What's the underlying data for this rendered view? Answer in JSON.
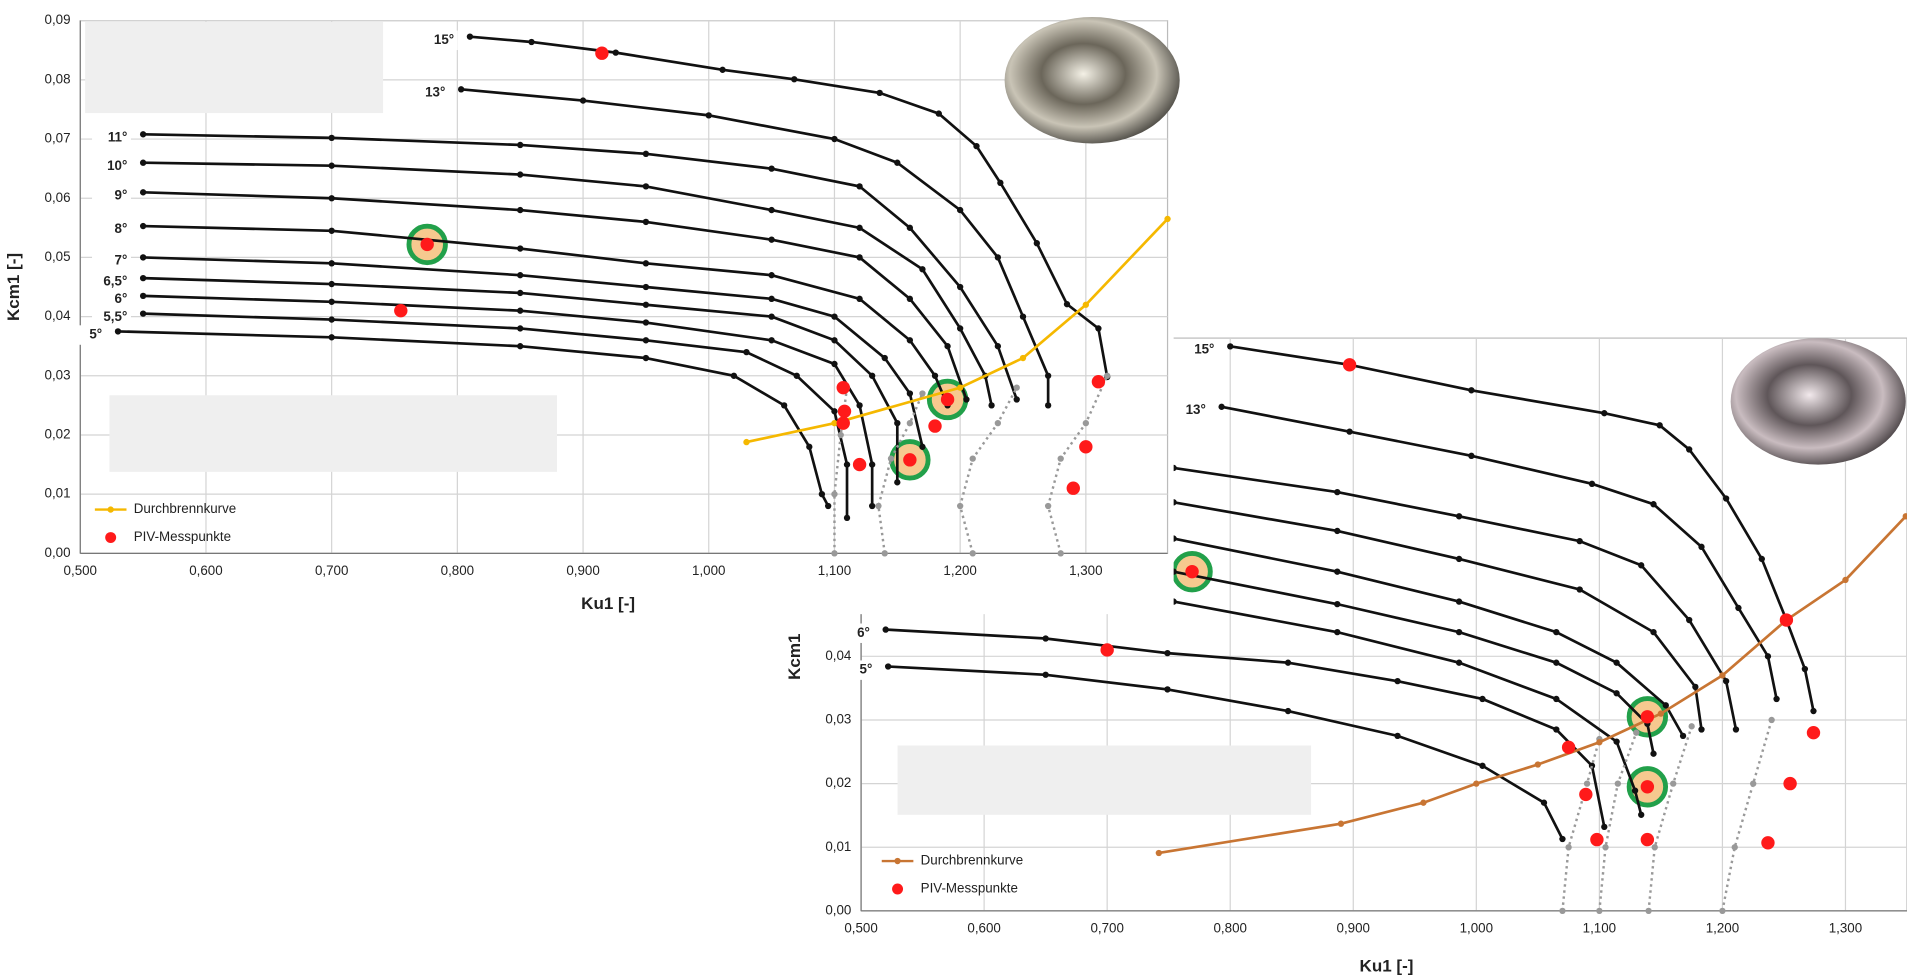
{
  "chart_data": [
    {
      "type": "line",
      "x_label": "Ku1 [-]",
      "y_label": "Kcm1 [-]",
      "xlim": [
        0.5,
        1.365
      ],
      "ylim": [
        0,
        0.09
      ],
      "grid": true,
      "xticks": [
        {
          "value": 0.5,
          "label": "0,500"
        },
        {
          "value": 0.6,
          "label": "0,600"
        },
        {
          "value": 0.7,
          "label": "0,700"
        },
        {
          "value": 0.8,
          "label": "0,800"
        },
        {
          "value": 0.9,
          "label": "0,900"
        },
        {
          "value": 1.0,
          "label": "1,000"
        },
        {
          "value": 1.1,
          "label": "1,100"
        },
        {
          "value": 1.2,
          "label": "1,200"
        },
        {
          "value": 1.3,
          "label": "1,300"
        }
      ],
      "yticks": [
        {
          "value": 0,
          "label": "0,00"
        },
        {
          "value": 0.01,
          "label": "0,01"
        },
        {
          "value": 0.02,
          "label": "0,02"
        },
        {
          "value": 0.03,
          "label": "0,03"
        },
        {
          "value": 0.04,
          "label": "0,04"
        },
        {
          "value": 0.05,
          "label": "0,05"
        },
        {
          "value": 0.06,
          "label": "0,06"
        },
        {
          "value": 0.07,
          "label": "0,07"
        },
        {
          "value": 0.08,
          "label": "0,08"
        },
        {
          "value": 0.09,
          "label": "0,09"
        }
      ],
      "series": [
        {
          "name": "15°",
          "style": "line",
          "color": "#111111",
          "x": [
            0.81,
            0.859,
            0.926,
            1.011,
            1.068,
            1.136,
            1.183,
            1.213,
            1.232,
            1.261,
            1.285,
            1.31,
            1.317
          ],
          "values": [
            0.0873,
            0.0864,
            0.0846,
            0.0817,
            0.0801,
            0.0778,
            0.0743,
            0.0688,
            0.0626,
            0.0524,
            0.0421,
            0.038,
            0.0298
          ]
        },
        {
          "name": "13°",
          "style": "line",
          "color": "#111111",
          "x": [
            0.803,
            0.9,
            1.0,
            1.1,
            1.15,
            1.2,
            1.23,
            1.25,
            1.27,
            1.27
          ],
          "values": [
            0.0784,
            0.0765,
            0.074,
            0.07,
            0.066,
            0.058,
            0.05,
            0.04,
            0.03,
            0.025
          ]
        },
        {
          "name": "11°",
          "style": "line",
          "color": "#111111",
          "x": [
            0.55,
            0.7,
            0.85,
            0.95,
            1.05,
            1.12,
            1.16,
            1.2,
            1.23,
            1.245
          ],
          "values": [
            0.0708,
            0.0702,
            0.069,
            0.0675,
            0.065,
            0.062,
            0.055,
            0.045,
            0.035,
            0.026
          ]
        },
        {
          "name": "10°",
          "style": "line",
          "color": "#111111",
          "x": [
            0.55,
            0.7,
            0.85,
            0.95,
            1.05,
            1.12,
            1.17,
            1.2,
            1.22,
            1.225
          ],
          "values": [
            0.066,
            0.0655,
            0.064,
            0.062,
            0.058,
            0.055,
            0.048,
            0.038,
            0.03,
            0.025
          ]
        },
        {
          "name": "9°",
          "style": "line",
          "color": "#111111",
          "x": [
            0.55,
            0.7,
            0.85,
            0.95,
            1.05,
            1.12,
            1.16,
            1.19,
            1.205
          ],
          "values": [
            0.061,
            0.06,
            0.058,
            0.056,
            0.053,
            0.05,
            0.043,
            0.035,
            0.026
          ]
        },
        {
          "name": "8°",
          "style": "line",
          "color": "#111111",
          "x": [
            0.55,
            0.7,
            0.85,
            0.95,
            1.05,
            1.12,
            1.16,
            1.18,
            1.19
          ],
          "values": [
            0.0553,
            0.0545,
            0.0515,
            0.049,
            0.047,
            0.043,
            0.036,
            0.03,
            0.025
          ]
        },
        {
          "name": "7°",
          "style": "line",
          "color": "#111111",
          "x": [
            0.55,
            0.7,
            0.85,
            0.95,
            1.05,
            1.1,
            1.14,
            1.16,
            1.17
          ],
          "values": [
            0.05,
            0.049,
            0.047,
            0.045,
            0.043,
            0.04,
            0.033,
            0.027,
            0.018
          ]
        },
        {
          "name": "6,5°",
          "style": "line",
          "color": "#111111",
          "x": [
            0.55,
            0.7,
            0.85,
            0.95,
            1.05,
            1.1,
            1.13,
            1.15,
            1.15
          ],
          "values": [
            0.0465,
            0.0455,
            0.044,
            0.042,
            0.04,
            0.036,
            0.03,
            0.022,
            0.012
          ]
        },
        {
          "name": "6°",
          "style": "line",
          "color": "#111111",
          "x": [
            0.55,
            0.7,
            0.85,
            0.95,
            1.05,
            1.1,
            1.12,
            1.13,
            1.13
          ],
          "values": [
            0.0435,
            0.0425,
            0.041,
            0.039,
            0.036,
            0.032,
            0.025,
            0.015,
            0.008
          ]
        },
        {
          "name": "5,5°",
          "style": "line",
          "color": "#111111",
          "x": [
            0.55,
            0.7,
            0.85,
            0.95,
            1.03,
            1.07,
            1.1,
            1.11,
            1.11
          ],
          "values": [
            0.0405,
            0.0395,
            0.038,
            0.036,
            0.034,
            0.03,
            0.024,
            0.015,
            0.006
          ]
        },
        {
          "name": "5°",
          "style": "line",
          "color": "#111111",
          "x": [
            0.53,
            0.7,
            0.85,
            0.95,
            1.02,
            1.06,
            1.08,
            1.09,
            1.095
          ],
          "values": [
            0.0375,
            0.0365,
            0.035,
            0.033,
            0.03,
            0.025,
            0.018,
            0.01,
            0.008
          ]
        },
        {
          "style": "dotted",
          "color": "#999999",
          "x": [
            1.1,
            1.1,
            1.105,
            1.11
          ],
          "values": [
            0,
            0.01,
            0.02,
            0.028
          ]
        },
        {
          "style": "dotted",
          "color": "#999999",
          "x": [
            1.14,
            1.135,
            1.145,
            1.16,
            1.17
          ],
          "values": [
            0,
            0.008,
            0.016,
            0.022,
            0.027
          ]
        },
        {
          "style": "dotted",
          "color": "#999999",
          "x": [
            1.21,
            1.2,
            1.21,
            1.23,
            1.245
          ],
          "values": [
            0,
            0.008,
            0.016,
            0.022,
            0.028
          ]
        },
        {
          "style": "dotted",
          "color": "#999999",
          "x": [
            1.28,
            1.27,
            1.28,
            1.3,
            1.317
          ],
          "values": [
            0,
            0.008,
            0.016,
            0.022,
            0.03
          ]
        },
        {
          "name": "Durchbrennkurve",
          "legend": true,
          "style": "line",
          "color": "#f5b800",
          "x": [
            1.03,
            1.1,
            1.2,
            1.25,
            1.3,
            1.365
          ],
          "values": [
            0.0188,
            0.022,
            0.028,
            0.033,
            0.042,
            0.0565
          ]
        },
        {
          "name": "PIV-Messpunkte",
          "legend": true,
          "style": "points",
          "color": "#ff1a1a",
          "x": [
            0.915,
            0.776,
            0.755,
            1.107,
            1.108,
            1.107,
            1.12,
            1.16,
            1.18,
            1.19,
            1.31,
            1.3,
            1.29
          ],
          "values": [
            0.0845,
            0.0522,
            0.041,
            0.028,
            0.024,
            0.022,
            0.015,
            0.0158,
            0.0215,
            0.026,
            0.029,
            0.018,
            0.011
          ]
        }
      ],
      "highlight": {
        "color": "#22a04a",
        "x": [
          0.776,
          1.19,
          1.16
        ],
        "values": [
          0.0522,
          0.026,
          0.0158
        ]
      }
    },
    {
      "type": "line",
      "x_label": "Ku1 [-]",
      "y_label": "Kcm1",
      "xlim": [
        0.5,
        1.35
      ],
      "ylim": [
        0,
        0.09
      ],
      "grid": true,
      "xticks": [
        {
          "value": 0.5,
          "label": "0,500"
        },
        {
          "value": 0.6,
          "label": "0,600"
        },
        {
          "value": 0.7,
          "label": "0,700"
        },
        {
          "value": 0.8,
          "label": "0,800"
        },
        {
          "value": 0.9,
          "label": "0,900"
        },
        {
          "value": 1.0,
          "label": "1,000"
        },
        {
          "value": 1.1,
          "label": "1,100"
        },
        {
          "value": 1.2,
          "label": "1,200"
        },
        {
          "value": 1.3,
          "label": "1,300"
        }
      ],
      "yticks": [
        {
          "value": 0,
          "label": "0,00"
        },
        {
          "value": 0.01,
          "label": "0,01"
        },
        {
          "value": 0.02,
          "label": "0,02"
        },
        {
          "value": 0.03,
          "label": "0,03"
        },
        {
          "value": 0.04,
          "label": "0,04"
        }
      ],
      "series": [
        {
          "name": "15°",
          "style": "line",
          "color": "#111111",
          "x": [
            0.8,
            0.897,
            0.996,
            1.104,
            1.149,
            1.173,
            1.203,
            1.232,
            1.252,
            1.267,
            1.274
          ],
          "values": [
            0.0887,
            0.0858,
            0.0818,
            0.0782,
            0.0763,
            0.0725,
            0.0648,
            0.0553,
            0.0457,
            0.038,
            0.0314
          ]
        },
        {
          "name": "13°",
          "style": "line",
          "color": "#111111",
          "x": [
            0.793,
            0.897,
            0.996,
            1.094,
            1.144,
            1.183,
            1.213,
            1.237,
            1.244
          ],
          "values": [
            0.0792,
            0.0753,
            0.0715,
            0.0671,
            0.0639,
            0.0572,
            0.0476,
            0.04,
            0.0333
          ]
        },
        {
          "style": "line",
          "color": "#111111",
          "x": [
            0.754,
            0.887,
            0.986,
            1.084,
            1.134,
            1.173,
            1.203,
            1.211
          ],
          "values": [
            0.0696,
            0.0658,
            0.062,
            0.0581,
            0.0543,
            0.0457,
            0.0361,
            0.0285
          ]
        },
        {
          "style": "line",
          "color": "#111111",
          "x": [
            0.754,
            0.887,
            0.986,
            1.084,
            1.144,
            1.178,
            1.183
          ],
          "values": [
            0.0642,
            0.0597,
            0.0553,
            0.0505,
            0.0438,
            0.0352,
            0.0285
          ]
        },
        {
          "style": "line",
          "color": "#111111",
          "x": [
            0.754,
            0.887,
            0.986,
            1.065,
            1.114,
            1.154,
            1.168
          ],
          "values": [
            0.0585,
            0.0533,
            0.0486,
            0.0438,
            0.039,
            0.0323,
            0.0275
          ]
        },
        {
          "style": "line",
          "color": "#111111",
          "x": [
            0.754,
            0.887,
            0.986,
            1.065,
            1.114,
            1.139,
            1.144
          ],
          "values": [
            0.0533,
            0.0482,
            0.0438,
            0.039,
            0.0342,
            0.0294,
            0.0247
          ]
        },
        {
          "style": "line",
          "color": "#111111",
          "x": [
            0.754,
            0.887,
            0.986,
            1.065,
            1.114,
            1.129,
            1.134
          ],
          "values": [
            0.0486,
            0.0438,
            0.039,
            0.0333,
            0.0266,
            0.0189,
            0.0151
          ]
        },
        {
          "name": "6°",
          "style": "line",
          "color": "#111111",
          "x": [
            0.52,
            0.65,
            0.749,
            0.847,
            0.936,
            1.005,
            1.065,
            1.094,
            1.104
          ],
          "values": [
            0.0442,
            0.0428,
            0.0405,
            0.039,
            0.0361,
            0.0333,
            0.0285,
            0.0228,
            0.0132
          ]
        },
        {
          "name": "5°",
          "style": "line",
          "color": "#111111",
          "x": [
            0.522,
            0.65,
            0.749,
            0.847,
            0.936,
            1.005,
            1.055,
            1.07
          ],
          "values": [
            0.0384,
            0.0371,
            0.0348,
            0.0314,
            0.0275,
            0.0228,
            0.017,
            0.0113
          ]
        },
        {
          "style": "dotted",
          "color": "#999999",
          "x": [
            1.07,
            1.075,
            1.09,
            1.1
          ],
          "values": [
            0,
            0.01,
            0.02,
            0.027
          ]
        },
        {
          "style": "dotted",
          "color": "#999999",
          "x": [
            1.1,
            1.105,
            1.115,
            1.13
          ],
          "values": [
            0,
            0.01,
            0.02,
            0.028
          ]
        },
        {
          "style": "dotted",
          "color": "#999999",
          "x": [
            1.14,
            1.145,
            1.16,
            1.175
          ],
          "values": [
            0,
            0.01,
            0.02,
            0.029
          ]
        },
        {
          "style": "dotted",
          "color": "#999999",
          "x": [
            1.2,
            1.21,
            1.225,
            1.24
          ],
          "values": [
            0,
            0.01,
            0.02,
            0.03
          ]
        },
        {
          "name": "Durchbrennkurve",
          "legend": true,
          "style": "line",
          "color": "#c87533",
          "x": [
            0.742,
            0.89,
            0.957,
            1.0,
            1.05,
            1.1,
            1.15,
            1.2,
            1.252,
            1.3,
            1.349
          ],
          "values": [
            0.0091,
            0.0137,
            0.017,
            0.02,
            0.023,
            0.0265,
            0.031,
            0.037,
            0.0457,
            0.052,
            0.062
          ]
        },
        {
          "name": "PIV-Messpunkte",
          "legend": true,
          "style": "points",
          "color": "#ff1a1a",
          "x": [
            0.897,
            0.769,
            0.7,
            1.252,
            1.274,
            1.255,
            1.237,
            1.139,
            1.139,
            1.139,
            1.098,
            1.089,
            1.075
          ],
          "values": [
            0.0858,
            0.0533,
            0.041,
            0.0457,
            0.028,
            0.02,
            0.0107,
            0.0305,
            0.0195,
            0.0112,
            0.0112,
            0.0183,
            0.0257
          ]
        }
      ],
      "highlight": {
        "color": "#22a04a",
        "x": [
          0.769,
          1.139,
          1.139
        ],
        "values": [
          0.0533,
          0.0305,
          0.0195
        ]
      }
    }
  ]
}
